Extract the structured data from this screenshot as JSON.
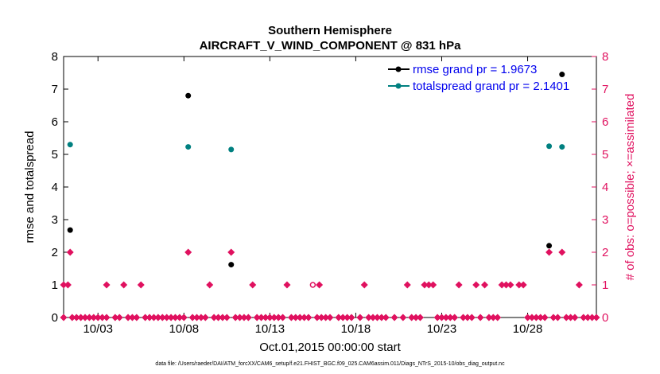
{
  "chart_data": {
    "type": "scatter",
    "title": "Southern Hemisphere",
    "subtitle": "AIRCRAFT_V_WIND_COMPONENT @ 831 hPa",
    "xlabel": "Oct.01,2015 00:00:00 start",
    "ylabel_left": "rmse and totalspread",
    "ylabel_right": "# of obs: o=possible; ×=assimilated",
    "footnote": "data file: /Users/raeder/DAI/ATM_forcXX/CAM6_setup/f.e21.FHIST_BGC.f09_025.CAM6assim.011/Diags_NTrS_2015-10/obs_diag_output.nc",
    "xlim": [
      0,
      31
    ],
    "ylim_left": [
      0,
      8
    ],
    "ylim_right": [
      0,
      8
    ],
    "x_ticks": [
      2,
      7,
      12,
      17,
      22,
      27
    ],
    "x_tick_labels": [
      "10/03",
      "10/08",
      "10/13",
      "10/18",
      "10/23",
      "10/28"
    ],
    "y_ticks_left": [
      "0",
      "1",
      "2",
      "3",
      "4",
      "5",
      "6",
      "7",
      "8"
    ],
    "y_ticks_right": [
      "0",
      "1",
      "2",
      "3",
      "4",
      "5",
      "6",
      "7",
      "8"
    ],
    "colors": {
      "rmse": "#000000",
      "totalspread": "#008080",
      "obs": "#e0115f",
      "legend_text": "#0000ee"
    },
    "series": [
      {
        "name": "rmse grand pr = 1.9673",
        "points": [
          [
            0.38,
            2.68
          ],
          [
            7.25,
            6.8
          ],
          [
            9.75,
            1.62
          ],
          [
            28.25,
            2.2
          ],
          [
            29,
            7.45
          ]
        ]
      },
      {
        "name": "totalspread grand pr = 2.1401",
        "points": [
          [
            0.38,
            5.3
          ],
          [
            7.25,
            5.23
          ],
          [
            9.75,
            5.15
          ],
          [
            28.25,
            5.25
          ],
          [
            29,
            5.23
          ]
        ]
      },
      {
        "name": "obs possible",
        "points": [
          [
            14.5,
            1
          ]
        ]
      },
      {
        "name": "obs assimilated",
        "points": [
          [
            0,
            1
          ],
          [
            0.25,
            1
          ],
          [
            0.38,
            2
          ],
          [
            2.5,
            1
          ],
          [
            3.5,
            1
          ],
          [
            4.5,
            1
          ],
          [
            7.25,
            2
          ],
          [
            8.5,
            1
          ],
          [
            9.75,
            2
          ],
          [
            11,
            1
          ],
          [
            13,
            1
          ],
          [
            14.88,
            1
          ],
          [
            17.5,
            1
          ],
          [
            20,
            1
          ],
          [
            21,
            1
          ],
          [
            21.25,
            1
          ],
          [
            21.5,
            1
          ],
          [
            23,
            1
          ],
          [
            24,
            1
          ],
          [
            24.5,
            1
          ],
          [
            25.5,
            1
          ],
          [
            25.75,
            1
          ],
          [
            26,
            1
          ],
          [
            26.5,
            1
          ],
          [
            26.75,
            1
          ],
          [
            28.25,
            2
          ],
          [
            29,
            2
          ],
          [
            30,
            1
          ],
          [
            0,
            0
          ],
          [
            0.5,
            0
          ],
          [
            0.75,
            0
          ],
          [
            1,
            0
          ],
          [
            1.25,
            0
          ],
          [
            1.5,
            0
          ],
          [
            1.75,
            0
          ],
          [
            2,
            0
          ],
          [
            2.25,
            0
          ],
          [
            2.5,
            0
          ],
          [
            3,
            0
          ],
          [
            3.25,
            0
          ],
          [
            3.75,
            0
          ],
          [
            4,
            0
          ],
          [
            4.25,
            0
          ],
          [
            4.75,
            0
          ],
          [
            5,
            0
          ],
          [
            5.25,
            0
          ],
          [
            5.5,
            0
          ],
          [
            5.75,
            0
          ],
          [
            6,
            0
          ],
          [
            6.25,
            0
          ],
          [
            6.5,
            0
          ],
          [
            6.75,
            0
          ],
          [
            7,
            0
          ],
          [
            7.5,
            0
          ],
          [
            7.75,
            0
          ],
          [
            8,
            0
          ],
          [
            8.25,
            0
          ],
          [
            8.75,
            0
          ],
          [
            9,
            0
          ],
          [
            9.25,
            0
          ],
          [
            9.5,
            0
          ],
          [
            10,
            0
          ],
          [
            10.25,
            0
          ],
          [
            10.5,
            0
          ],
          [
            10.75,
            0
          ],
          [
            11.25,
            0
          ],
          [
            11.5,
            0
          ],
          [
            11.75,
            0
          ],
          [
            12,
            0
          ],
          [
            12.25,
            0
          ],
          [
            12.5,
            0
          ],
          [
            12.75,
            0
          ],
          [
            13.25,
            0
          ],
          [
            13.5,
            0
          ],
          [
            13.75,
            0
          ],
          [
            14,
            0
          ],
          [
            14.25,
            0
          ],
          [
            14.75,
            0
          ],
          [
            15,
            0
          ],
          [
            15.25,
            0
          ],
          [
            15.5,
            0
          ],
          [
            16,
            0
          ],
          [
            16.25,
            0
          ],
          [
            16.5,
            0
          ],
          [
            16.75,
            0
          ],
          [
            17.25,
            0
          ],
          [
            17.75,
            0
          ],
          [
            18,
            0
          ],
          [
            18.25,
            0
          ],
          [
            18.5,
            0
          ],
          [
            18.75,
            0
          ],
          [
            19.25,
            0
          ],
          [
            19.75,
            0
          ],
          [
            20.25,
            0
          ],
          [
            20.5,
            0
          ],
          [
            20.75,
            0
          ],
          [
            21.75,
            0
          ],
          [
            22,
            0
          ],
          [
            22.25,
            0
          ],
          [
            22.5,
            0
          ],
          [
            22.75,
            0
          ],
          [
            23.25,
            0
          ],
          [
            23.5,
            0
          ],
          [
            23.75,
            0
          ],
          [
            24.25,
            0
          ],
          [
            24.75,
            0
          ],
          [
            25,
            0
          ],
          [
            25.25,
            0
          ],
          [
            27,
            0
          ],
          [
            27.25,
            0
          ],
          [
            27.5,
            0
          ],
          [
            27.75,
            0
          ],
          [
            28,
            0
          ],
          [
            28.5,
            0
          ],
          [
            28.75,
            0
          ],
          [
            29.25,
            0
          ],
          [
            29.5,
            0
          ],
          [
            29.75,
            0
          ],
          [
            30.25,
            0
          ],
          [
            30.5,
            0
          ],
          [
            30.75,
            0
          ],
          [
            31,
            0
          ]
        ]
      }
    ],
    "legend": {
      "position": "top-right",
      "entries": [
        "rmse grand pr = 1.9673",
        "totalspread grand pr = 2.1401"
      ]
    }
  }
}
